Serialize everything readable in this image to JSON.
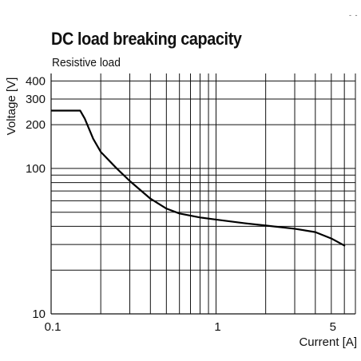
{
  "corner_mark": "- -",
  "chart_data": {
    "type": "line",
    "title": "DC load breaking capacity",
    "subtitle": "Resistive load",
    "xlabel": "Current [A]",
    "ylabel": "Voltage [V]",
    "xscale": "log",
    "yscale": "log",
    "xlim": [
      0.1,
      7
    ],
    "ylim": [
      10,
      450
    ],
    "grid": true,
    "x_ticks": [
      {
        "value": 0.1,
        "label": "0.1"
      },
      {
        "value": 1,
        "label": "1"
      },
      {
        "value": 5,
        "label": "5"
      }
    ],
    "y_ticks": [
      {
        "value": 10,
        "label": "10"
      },
      {
        "value": 100,
        "label": "100"
      },
      {
        "value": 200,
        "label": "200"
      },
      {
        "value": 300,
        "label": "300"
      },
      {
        "value": 400,
        "label": "400"
      }
    ],
    "series": [
      {
        "x": [
          0.1,
          0.15,
          0.16,
          0.18,
          0.2,
          0.25,
          0.3,
          0.4,
          0.5,
          0.6,
          0.8,
          1.0,
          1.5,
          2.0,
          3.0,
          4.0,
          5.0,
          6.0
        ],
        "y": [
          250,
          250,
          220,
          160,
          130,
          100,
          82,
          62,
          53,
          49,
          46,
          44.5,
          42,
          40.5,
          38.5,
          36.5,
          33,
          29.5
        ]
      }
    ]
  }
}
